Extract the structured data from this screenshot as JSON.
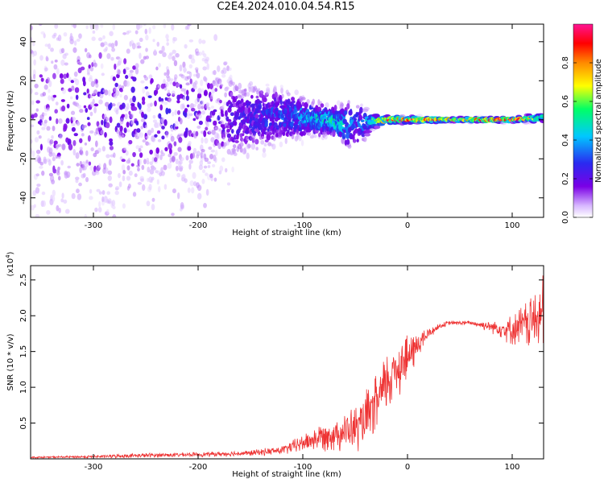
{
  "title": "C2E4.2024.010.04.54.R15",
  "chart_data": [
    {
      "type": "heatmap",
      "title": "",
      "xlabel": "Height of straight line (km)",
      "ylabel": "Frequency (Hz)",
      "xlim": [
        -360,
        130
      ],
      "ylim": [
        -50,
        49
      ],
      "x_ticks": [
        -300,
        -200,
        -100,
        0,
        100
      ],
      "x_tick_labels": [
        "-300",
        "-200",
        "-100",
        "0",
        "100"
      ],
      "y_ticks": [
        -40,
        -20,
        0,
        20,
        40
      ],
      "y_tick_labels": [
        "-40",
        "-20",
        "0",
        "20",
        "40"
      ],
      "grid": false,
      "colorbar": {
        "label": "Normalized spectral amplitude",
        "range": [
          0,
          1
        ],
        "ticks": [
          0.0,
          0.2,
          0.4,
          0.6,
          0.8
        ],
        "tick_labels": [
          "0.0",
          "0.2",
          "0.4",
          "0.6",
          "0.8"
        ],
        "colormap": [
          "#ffffff",
          "#b07cf0",
          "#7a00e6",
          "#2a2af0",
          "#00c8ff",
          "#00ff66",
          "#ffff00",
          "#ff8a00",
          "#ff0000",
          "#ff1493"
        ]
      },
      "band": {
        "x": [
          -360,
          -300,
          -250,
          -200,
          -160,
          -120,
          -90,
          -70,
          -55,
          -45,
          -35,
          -20,
          0,
          50,
          100,
          130
        ],
        "center_hz": [
          0,
          3,
          5,
          2,
          0,
          2,
          1,
          -1,
          -3,
          -2,
          -1,
          0,
          0,
          0,
          0,
          1
        ],
        "spread_hz": [
          45,
          42,
          35,
          28,
          18,
          12,
          8,
          6,
          12,
          10,
          4,
          2,
          1.5,
          1,
          1.2,
          2
        ],
        "peak_amplitude": [
          0.15,
          0.2,
          0.22,
          0.2,
          0.22,
          0.3,
          0.4,
          0.5,
          0.35,
          0.3,
          0.45,
          0.8,
          0.85,
          0.7,
          0.9,
          0.5
        ]
      }
    },
    {
      "type": "line",
      "title": "",
      "xlabel": "Height of straight line (km)",
      "ylabel": "SNR (10 * v/v)",
      "y_multiplier_label": "(x10",
      "y_multiplier_exp": "4",
      "y_multiplier_close": ")",
      "xlim": [
        -360,
        130
      ],
      "ylim": [
        0,
        2.7
      ],
      "y_units": "x10^4",
      "x_ticks": [
        -300,
        -200,
        -100,
        0,
        100
      ],
      "x_tick_labels": [
        "-300",
        "-200",
        "-100",
        "0",
        "100"
      ],
      "y_ticks": [
        0.5,
        1.0,
        1.5,
        2.0,
        2.5
      ],
      "y_tick_labels": [
        "0.5",
        "1.0",
        "1.5",
        "2.0",
        "2.5"
      ],
      "grid": false,
      "line_color": "#ee3333",
      "series": [
        {
          "x": [
            -360,
            -300,
            -250,
            -200,
            -150,
            -120,
            -100,
            -80,
            -60,
            -45,
            -30,
            -20,
            -10,
            0,
            10,
            20,
            30,
            40,
            60,
            80,
            100,
            115,
            130
          ],
          "mean": [
            0.02,
            0.03,
            0.05,
            0.06,
            0.08,
            0.12,
            0.22,
            0.32,
            0.38,
            0.45,
            0.75,
            1.05,
            1.3,
            1.4,
            1.6,
            1.75,
            1.85,
            1.9,
            1.9,
            1.85,
            1.8,
            1.9,
            2.0
          ],
          "noise": [
            0.01,
            0.02,
            0.03,
            0.03,
            0.04,
            0.06,
            0.12,
            0.2,
            0.25,
            0.35,
            0.4,
            0.45,
            0.45,
            0.35,
            0.2,
            0.08,
            0.04,
            0.03,
            0.03,
            0.08,
            0.2,
            0.35,
            0.55
          ]
        }
      ]
    }
  ]
}
